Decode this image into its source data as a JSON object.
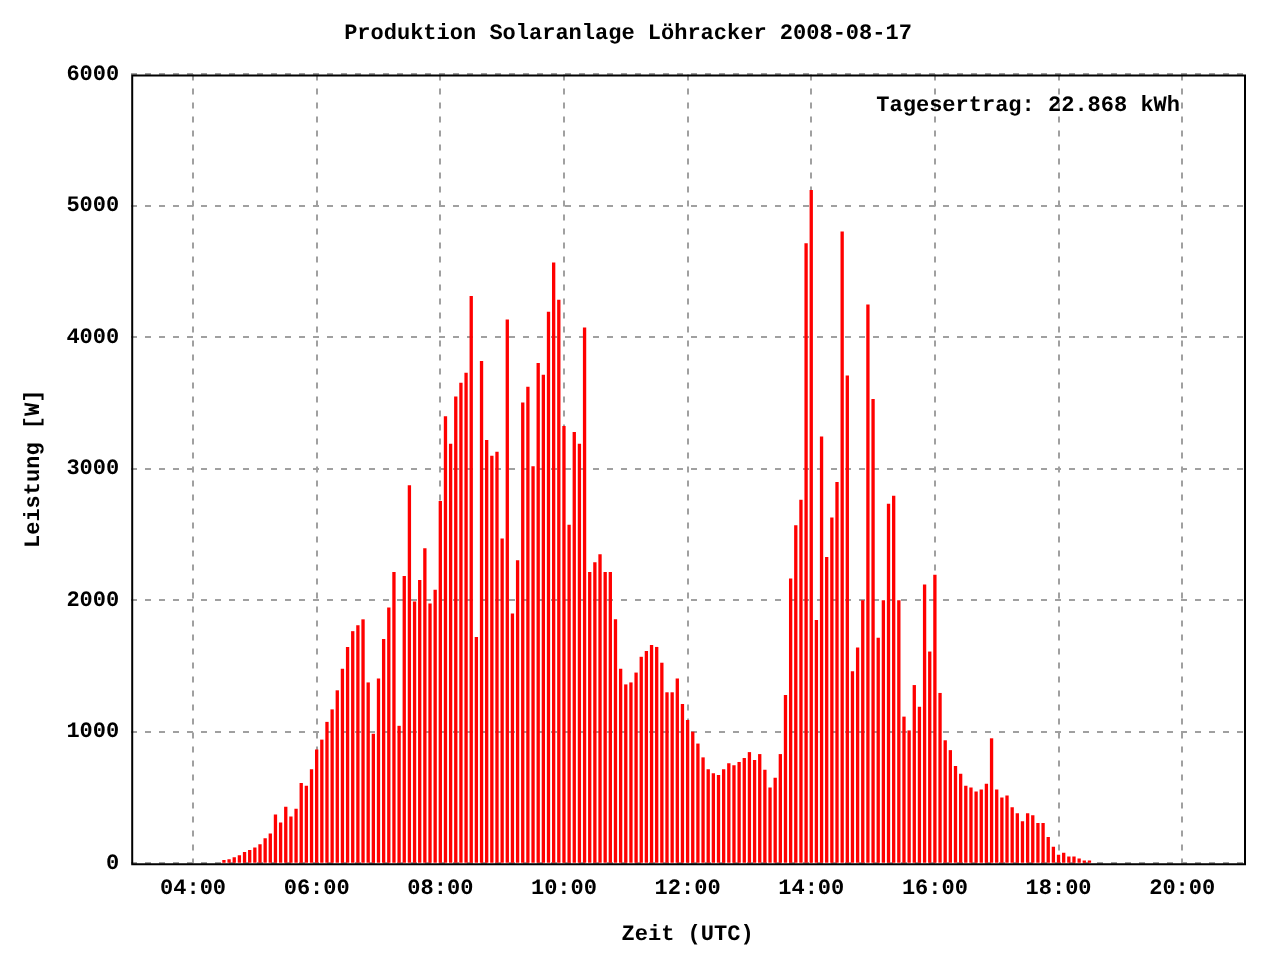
{
  "chart_data": {
    "type": "bar",
    "title": "Produktion Solaranlage Löhracker 2008-08-17",
    "xlabel": "Zeit (UTC)",
    "ylabel": "Leistung [W]",
    "annotations": [
      "Tagesertrag: 22.868 kWh"
    ],
    "x": [
      "2008-08-17T04:30",
      "2008-08-17T04:35",
      "2008-08-17T04:40",
      "2008-08-17T04:45",
      "2008-08-17T04:50",
      "2008-08-17T04:55",
      "2008-08-17T05:00",
      "2008-08-17T05:05",
      "2008-08-17T05:10",
      "2008-08-17T05:15",
      "2008-08-17T05:20",
      "2008-08-17T05:25",
      "2008-08-17T05:30",
      "2008-08-17T05:35",
      "2008-08-17T05:40",
      "2008-08-17T05:45",
      "2008-08-17T05:50",
      "2008-08-17T05:55",
      "2008-08-17T06:00",
      "2008-08-17T06:05",
      "2008-08-17T06:10",
      "2008-08-17T06:15",
      "2008-08-17T06:20",
      "2008-08-17T06:25",
      "2008-08-17T06:30",
      "2008-08-17T06:35",
      "2008-08-17T06:40",
      "2008-08-17T06:45",
      "2008-08-17T06:50",
      "2008-08-17T06:55",
      "2008-08-17T07:00",
      "2008-08-17T07:05",
      "2008-08-17T07:10",
      "2008-08-17T07:15",
      "2008-08-17T07:20",
      "2008-08-17T07:25",
      "2008-08-17T07:30",
      "2008-08-17T07:35",
      "2008-08-17T07:40",
      "2008-08-17T07:45",
      "2008-08-17T07:50",
      "2008-08-17T07:55",
      "2008-08-17T08:00",
      "2008-08-17T08:05",
      "2008-08-17T08:10",
      "2008-08-17T08:15",
      "2008-08-17T08:20",
      "2008-08-17T08:25",
      "2008-08-17T08:30",
      "2008-08-17T08:35",
      "2008-08-17T08:40",
      "2008-08-17T08:45",
      "2008-08-17T08:50",
      "2008-08-17T08:55",
      "2008-08-17T09:00",
      "2008-08-17T09:05",
      "2008-08-17T09:10",
      "2008-08-17T09:15",
      "2008-08-17T09:20",
      "2008-08-17T09:25",
      "2008-08-17T09:30",
      "2008-08-17T09:35",
      "2008-08-17T09:40",
      "2008-08-17T09:45",
      "2008-08-17T09:50",
      "2008-08-17T09:55",
      "2008-08-17T10:00",
      "2008-08-17T10:05",
      "2008-08-17T10:10",
      "2008-08-17T10:15",
      "2008-08-17T10:20",
      "2008-08-17T10:25",
      "2008-08-17T10:30",
      "2008-08-17T10:35",
      "2008-08-17T10:40",
      "2008-08-17T10:45",
      "2008-08-17T10:50",
      "2008-08-17T10:55",
      "2008-08-17T11:00",
      "2008-08-17T11:05",
      "2008-08-17T11:10",
      "2008-08-17T11:15",
      "2008-08-17T11:20",
      "2008-08-17T11:25",
      "2008-08-17T11:30",
      "2008-08-17T11:35",
      "2008-08-17T11:40",
      "2008-08-17T11:45",
      "2008-08-17T11:50",
      "2008-08-17T11:55",
      "2008-08-17T12:00",
      "2008-08-17T12:05",
      "2008-08-17T12:10",
      "2008-08-17T12:15",
      "2008-08-17T12:20",
      "2008-08-17T12:25",
      "2008-08-17T12:30",
      "2008-08-17T12:35",
      "2008-08-17T12:40",
      "2008-08-17T12:45",
      "2008-08-17T12:50",
      "2008-08-17T12:55",
      "2008-08-17T13:00",
      "2008-08-17T13:05",
      "2008-08-17T13:10",
      "2008-08-17T13:15",
      "2008-08-17T13:20",
      "2008-08-17T13:25",
      "2008-08-17T13:30",
      "2008-08-17T13:35",
      "2008-08-17T13:40",
      "2008-08-17T13:45",
      "2008-08-17T13:50",
      "2008-08-17T13:55",
      "2008-08-17T14:00",
      "2008-08-17T14:05",
      "2008-08-17T14:10",
      "2008-08-17T14:15",
      "2008-08-17T14:20",
      "2008-08-17T14:25",
      "2008-08-17T14:30",
      "2008-08-17T14:35",
      "2008-08-17T14:40",
      "2008-08-17T14:45",
      "2008-08-17T14:50",
      "2008-08-17T14:55",
      "2008-08-17T15:00",
      "2008-08-17T15:05",
      "2008-08-17T15:10",
      "2008-08-17T15:15",
      "2008-08-17T15:20",
      "2008-08-17T15:25",
      "2008-08-17T15:30",
      "2008-08-17T15:35",
      "2008-08-17T15:40",
      "2008-08-17T15:45",
      "2008-08-17T15:50",
      "2008-08-17T15:55",
      "2008-08-17T16:00",
      "2008-08-17T16:05",
      "2008-08-17T16:10",
      "2008-08-17T16:15",
      "2008-08-17T16:20",
      "2008-08-17T16:25",
      "2008-08-17T16:30",
      "2008-08-17T16:35",
      "2008-08-17T16:40",
      "2008-08-17T16:45",
      "2008-08-17T16:50",
      "2008-08-17T16:55",
      "2008-08-17T17:00",
      "2008-08-17T17:05",
      "2008-08-17T17:10",
      "2008-08-17T17:15",
      "2008-08-17T17:20",
      "2008-08-17T17:25",
      "2008-08-17T17:30",
      "2008-08-17T17:35",
      "2008-08-17T17:40",
      "2008-08-17T17:45",
      "2008-08-17T17:50",
      "2008-08-17T17:55",
      "2008-08-17T18:00",
      "2008-08-17T18:05",
      "2008-08-17T18:10",
      "2008-08-17T18:15",
      "2008-08-17T18:20",
      "2008-08-17T18:25",
      "2008-08-17T18:30"
    ],
    "values": [
      20,
      25,
      40,
      55,
      80,
      95,
      115,
      140,
      185,
      220,
      365,
      305,
      425,
      350,
      410,
      605,
      585,
      710,
      860,
      935,
      1070,
      1165,
      1310,
      1475,
      1640,
      1760,
      1805,
      1850,
      1370,
      980,
      1400,
      1700,
      1940,
      2210,
      1040,
      2180,
      2870,
      1985,
      2150,
      2390,
      1970,
      2075,
      2750,
      3395,
      3185,
      3545,
      3650,
      3725,
      4310,
      1715,
      3815,
      3215,
      3095,
      3125,
      2465,
      4130,
      1895,
      2300,
      3500,
      3620,
      3015,
      3800,
      3710,
      4190,
      4565,
      4280,
      3320,
      2570,
      3275,
      3185,
      4070,
      2210,
      2285,
      2345,
      2210,
      2210,
      1850,
      1475,
      1355,
      1370,
      1445,
      1565,
      1610,
      1655,
      1640,
      1520,
      1295,
      1295,
      1400,
      1205,
      1085,
      995,
      905,
      800,
      710,
      680,
      665,
      710,
      755,
      740,
      765,
      795,
      840,
      780,
      825,
      705,
      570,
      645,
      825,
      1275,
      2160,
      2565,
      2760,
      4710,
      5115,
      1845,
      3240,
      2325,
      2625,
      2895,
      4800,
      3705,
      1455,
      1635,
      1995,
      4245,
      3525,
      1710,
      1995,
      2730,
      2790,
      1995,
      1110,
      1005,
      1350,
      1185,
      2115,
      1605,
      2190,
      1290,
      930,
      855,
      735,
      675,
      585,
      570,
      540,
      555,
      600,
      945,
      555,
      495,
      510,
      420,
      375,
      315,
      375,
      360,
      300,
      300,
      195,
      120,
      60,
      75,
      45,
      45,
      30,
      15,
      15
    ],
    "color": "#ff0000",
    "xlim": [
      "2008-08-17T03:00",
      "2008-08-17T21:00"
    ],
    "xticks": [
      {
        "value": "2008-08-17T04:00",
        "label": "04:00"
      },
      {
        "value": "2008-08-17T06:00",
        "label": "06:00"
      },
      {
        "value": "2008-08-17T08:00",
        "label": "08:00"
      },
      {
        "value": "2008-08-17T10:00",
        "label": "10:00"
      },
      {
        "value": "2008-08-17T12:00",
        "label": "12:00"
      },
      {
        "value": "2008-08-17T14:00",
        "label": "14:00"
      },
      {
        "value": "2008-08-17T16:00",
        "label": "16:00"
      },
      {
        "value": "2008-08-17T18:00",
        "label": "18:00"
      },
      {
        "value": "2008-08-17T20:00",
        "label": "20:00"
      }
    ],
    "ylim": [
      0,
      6000
    ],
    "yticks": [
      0,
      1000,
      2000,
      3000,
      4000,
      5000,
      6000
    ],
    "grid": true,
    "legend": false
  }
}
